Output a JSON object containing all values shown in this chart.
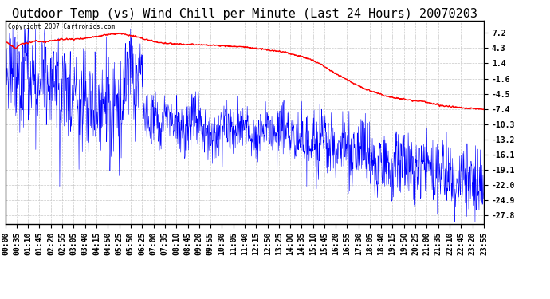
{
  "title": "Outdoor Temp (vs) Wind Chill per Minute (Last 24 Hours) 20070203",
  "copyright_text": "Copyright 2007 Cartronics.com",
  "yticks": [
    7.2,
    4.3,
    1.4,
    -1.6,
    -4.5,
    -7.4,
    -10.3,
    -13.2,
    -16.1,
    -19.1,
    -22.0,
    -24.9,
    -27.8
  ],
  "ymin": -29.5,
  "ymax": 9.5,
  "xtick_labels": [
    "00:00",
    "00:35",
    "01:10",
    "01:45",
    "02:20",
    "02:55",
    "03:05",
    "03:40",
    "04:15",
    "04:50",
    "05:25",
    "05:50",
    "06:25",
    "07:00",
    "07:35",
    "08:10",
    "08:45",
    "09:20",
    "09:55",
    "10:30",
    "11:05",
    "11:40",
    "12:15",
    "12:50",
    "13:25",
    "14:00",
    "14:35",
    "15:10",
    "15:45",
    "16:20",
    "16:55",
    "17:30",
    "18:05",
    "18:40",
    "19:15",
    "19:50",
    "20:25",
    "21:00",
    "21:35",
    "22:10",
    "22:45",
    "23:20",
    "23:55"
  ],
  "background_color": "#ffffff",
  "plot_bg_color": "#ffffff",
  "grid_color": "#c8c8c8",
  "blue_color": "#0000ff",
  "red_color": "#ff0000",
  "title_fontsize": 11,
  "tick_fontsize": 7,
  "red_base_points": [
    [
      0,
      5.5
    ],
    [
      0.5,
      4.2
    ],
    [
      0.7,
      5.0
    ],
    [
      1.0,
      5.2
    ],
    [
      1.5,
      5.6
    ],
    [
      2.0,
      5.5
    ],
    [
      2.5,
      5.8
    ],
    [
      3.0,
      6.0
    ],
    [
      3.5,
      6.0
    ],
    [
      4.0,
      6.2
    ],
    [
      4.5,
      6.5
    ],
    [
      5.0,
      6.8
    ],
    [
      5.5,
      7.0
    ],
    [
      5.75,
      7.1
    ],
    [
      6.0,
      6.9
    ],
    [
      6.5,
      6.5
    ],
    [
      7.0,
      6.0
    ],
    [
      7.5,
      5.5
    ],
    [
      8.0,
      5.2
    ],
    [
      9.0,
      5.0
    ],
    [
      10.0,
      4.9
    ],
    [
      11.0,
      4.7
    ],
    [
      12.0,
      4.5
    ],
    [
      13.0,
      4.0
    ],
    [
      14.0,
      3.5
    ],
    [
      15.0,
      2.5
    ],
    [
      15.5,
      1.8
    ],
    [
      16.0,
      0.8
    ],
    [
      16.5,
      -0.5
    ],
    [
      17.0,
      -1.5
    ],
    [
      17.5,
      -2.5
    ],
    [
      18.0,
      -3.5
    ],
    [
      18.5,
      -4.2
    ],
    [
      19.0,
      -4.8
    ],
    [
      19.5,
      -5.2
    ],
    [
      20.0,
      -5.5
    ],
    [
      20.5,
      -5.8
    ],
    [
      21.0,
      -6.0
    ],
    [
      21.5,
      -6.5
    ],
    [
      22.0,
      -6.8
    ],
    [
      22.5,
      -7.0
    ],
    [
      23.0,
      -7.2
    ],
    [
      23.5,
      -7.3
    ],
    [
      24.0,
      -7.5
    ]
  ],
  "blue_base_points": [
    [
      0,
      3.5
    ],
    [
      0.3,
      -2.0
    ],
    [
      0.5,
      1.0
    ],
    [
      0.7,
      -5.0
    ],
    [
      0.9,
      0.5
    ],
    [
      1.0,
      3.0
    ],
    [
      1.2,
      -3.0
    ],
    [
      1.4,
      0.5
    ],
    [
      1.6,
      -6.0
    ],
    [
      1.8,
      -2.0
    ],
    [
      2.0,
      1.5
    ],
    [
      2.2,
      -5.5
    ],
    [
      2.5,
      -1.0
    ],
    [
      2.8,
      -7.0
    ],
    [
      3.0,
      -2.0
    ],
    [
      3.3,
      -8.0
    ],
    [
      3.5,
      -3.0
    ],
    [
      3.7,
      -9.0
    ],
    [
      4.0,
      -4.0
    ],
    [
      4.3,
      -10.0
    ],
    [
      4.5,
      -4.5
    ],
    [
      4.8,
      -9.0
    ],
    [
      5.0,
      -3.0
    ],
    [
      5.3,
      -11.0
    ],
    [
      5.5,
      -5.0
    ],
    [
      5.8,
      -8.0
    ],
    [
      6.0,
      -3.5
    ],
    [
      6.25,
      3.0
    ],
    [
      6.5,
      -5.0
    ],
    [
      6.75,
      1.5
    ],
    [
      7.0,
      -8.0
    ],
    [
      7.25,
      -12.0
    ],
    [
      7.5,
      -7.0
    ],
    [
      7.75,
      -13.0
    ],
    [
      8.0,
      -8.0
    ],
    [
      8.5,
      -10.0
    ],
    [
      9.0,
      -12.0
    ],
    [
      9.5,
      -8.0
    ],
    [
      10.0,
      -11.0
    ],
    [
      10.5,
      -13.0
    ],
    [
      11.0,
      -9.0
    ],
    [
      11.5,
      -12.0
    ],
    [
      12.0,
      -10.0
    ],
    [
      12.5,
      -13.5
    ],
    [
      13.0,
      -11.0
    ],
    [
      13.5,
      -13.0
    ],
    [
      14.0,
      -10.0
    ],
    [
      14.5,
      -14.0
    ],
    [
      15.0,
      -12.0
    ],
    [
      15.5,
      -15.0
    ],
    [
      16.0,
      -13.0
    ],
    [
      16.5,
      -16.0
    ],
    [
      17.0,
      -14.0
    ],
    [
      17.5,
      -17.0
    ],
    [
      18.0,
      -15.0
    ],
    [
      18.5,
      -18.0
    ],
    [
      19.0,
      -16.5
    ],
    [
      19.5,
      -19.0
    ],
    [
      20.0,
      -17.0
    ],
    [
      20.5,
      -20.0
    ],
    [
      21.0,
      -18.0
    ],
    [
      21.5,
      -21.0
    ],
    [
      22.0,
      -19.0
    ],
    [
      22.5,
      -22.0
    ],
    [
      23.0,
      -20.0
    ],
    [
      23.5,
      -23.0
    ],
    [
      24.0,
      -22.0
    ]
  ]
}
